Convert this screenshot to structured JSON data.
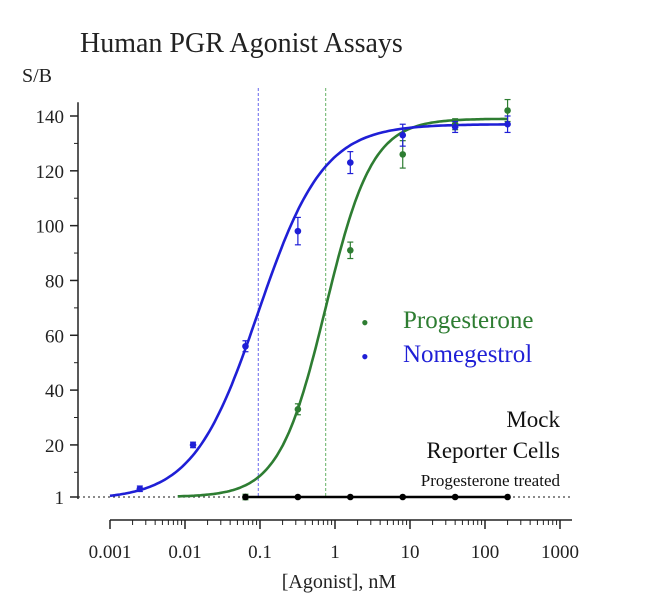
{
  "chart_data": {
    "type": "scatter",
    "title": "Human PGR Agonist Assays",
    "ylabel": "S/B",
    "xlabel": "[Agonist], nM",
    "x_scale": "log",
    "xlim": [
      0.001,
      1000
    ],
    "ylim": [
      0,
      150
    ],
    "x_ticks": [
      0.001,
      0.01,
      0.1,
      1,
      10,
      100,
      1000
    ],
    "x_tick_labels": [
      "0.001",
      "0.01",
      "0.1",
      "1",
      "10",
      "100",
      "1000"
    ],
    "y_ticks": [
      1,
      20,
      40,
      60,
      80,
      100,
      120,
      140
    ],
    "y_tick_labels": [
      "1",
      "20",
      "40",
      "60",
      "80",
      "100",
      "120",
      "140"
    ],
    "grid": false,
    "legend_position": "center-right",
    "series": [
      {
        "name": "Progesterone",
        "color": "#2e7d32",
        "x": [
          0.064,
          0.32,
          1.6,
          8,
          40,
          200
        ],
        "y": [
          1,
          33,
          91,
          126,
          137,
          142
        ],
        "err": [
          1,
          2,
          3,
          5,
          2,
          4
        ],
        "fit": {
          "bottom": 1,
          "top": 139,
          "ec50": 0.75,
          "hill": 1.4
        },
        "ec50_line": 0.75,
        "ec50_color": "#7fbf7f"
      },
      {
        "name": "Nomegestrol",
        "color": "#1f1fd6",
        "x": [
          0.0025,
          0.0128,
          0.064,
          0.32,
          1.6,
          8,
          40,
          200
        ],
        "y": [
          4,
          20,
          56,
          98,
          123,
          133,
          136,
          137
        ],
        "err": [
          1,
          1,
          2,
          5,
          4,
          4,
          2,
          3
        ],
        "fit": {
          "bottom": 0,
          "top": 137,
          "ec50": 0.095,
          "hill": 1.0
        },
        "ec50_line": 0.095,
        "ec50_color": "#8080f0"
      },
      {
        "name": "Mock Reporter Cells Progesterone treated",
        "color": "#000000",
        "x": [
          0.064,
          0.32,
          1.6,
          8,
          40,
          200
        ],
        "y": [
          1,
          1,
          1,
          1,
          1,
          1
        ]
      }
    ],
    "annotations": [
      "Mock",
      "Reporter Cells",
      "Progesterone treated"
    ]
  }
}
